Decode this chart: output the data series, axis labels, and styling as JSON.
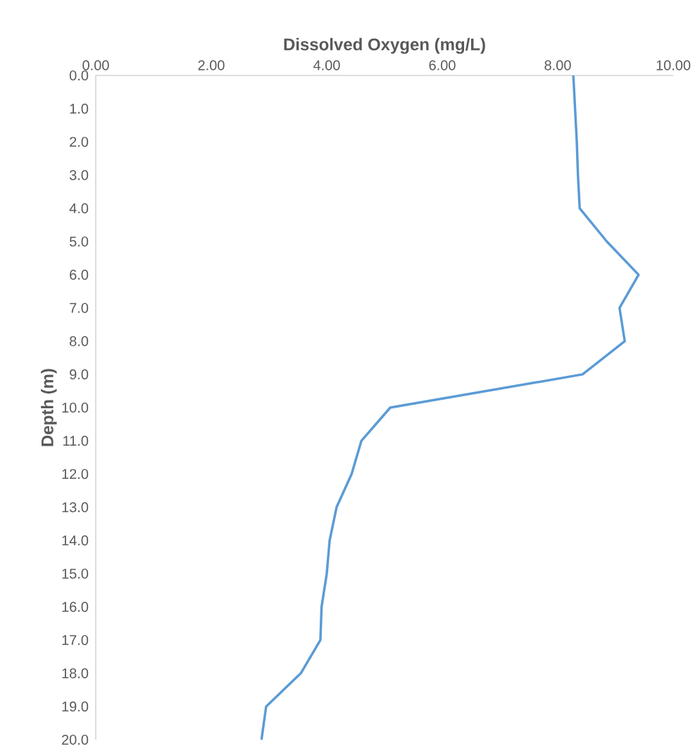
{
  "chart_data": {
    "type": "line",
    "xlabel": "Dissolved Oxygen (mg/L)",
    "ylabel": "Depth (m)",
    "x": [
      8.27,
      8.3,
      8.33,
      8.35,
      8.38,
      8.85,
      9.4,
      9.07,
      9.16,
      8.43,
      5.1,
      4.6,
      4.43,
      4.17,
      4.05,
      4.0,
      3.91,
      3.89,
      3.55,
      2.95,
      2.87
    ],
    "values": [
      0,
      1,
      2,
      3,
      4,
      5,
      6,
      7,
      8,
      9,
      10,
      11,
      12,
      13,
      14,
      15,
      16,
      17,
      18,
      19,
      20
    ],
    "color": "#5b9bd5",
    "xlim": [
      0,
      10
    ],
    "ylim": [
      20,
      0
    ],
    "xticks": [
      {
        "value": 0,
        "label": "0.00"
      },
      {
        "value": 2,
        "label": "2.00"
      },
      {
        "value": 4,
        "label": "4.00"
      },
      {
        "value": 6,
        "label": "6.00"
      },
      {
        "value": 8,
        "label": "8.00"
      },
      {
        "value": 10,
        "label": "10.00"
      }
    ],
    "yticks": [
      {
        "value": 0,
        "label": "0.0"
      },
      {
        "value": 1,
        "label": "1.0"
      },
      {
        "value": 2,
        "label": "2.0"
      },
      {
        "value": 3,
        "label": "3.0"
      },
      {
        "value": 4,
        "label": "4.0"
      },
      {
        "value": 5,
        "label": "5.0"
      },
      {
        "value": 6,
        "label": "6.0"
      },
      {
        "value": 7,
        "label": "7.0"
      },
      {
        "value": 8,
        "label": "8.0"
      },
      {
        "value": 9,
        "label": "9.0"
      },
      {
        "value": 10,
        "label": "10.0"
      },
      {
        "value": 11,
        "label": "11.0"
      },
      {
        "value": 12,
        "label": "12.0"
      },
      {
        "value": 13,
        "label": "13.0"
      },
      {
        "value": 14,
        "label": "14.0"
      },
      {
        "value": 15,
        "label": "15.0"
      },
      {
        "value": 16,
        "label": "16.0"
      },
      {
        "value": 17,
        "label": "17.0"
      },
      {
        "value": 18,
        "label": "18.0"
      },
      {
        "value": 19,
        "label": "19.0"
      },
      {
        "value": 20,
        "label": "20.0"
      }
    ],
    "grid": false
  }
}
